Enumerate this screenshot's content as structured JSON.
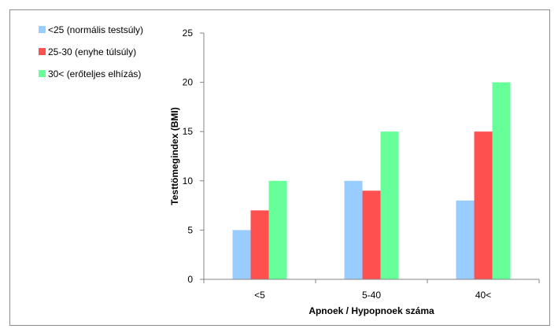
{
  "chart_data": {
    "type": "bar",
    "categories": [
      "<5",
      "5-40",
      "40<"
    ],
    "series": [
      {
        "name": "<25 (normális testsúly)",
        "values": [
          5,
          10,
          8
        ],
        "color": "#99ccff"
      },
      {
        "name": "25-30 (enyhe túlsúly)",
        "values": [
          7,
          9,
          15
        ],
        "color": "#ff5050"
      },
      {
        "name": "30< (erőteljes elhízás)",
        "values": [
          10,
          15,
          20
        ],
        "color": "#66ff99"
      }
    ],
    "title": "",
    "xlabel": "Apnoek / Hypopnoek száma",
    "ylabel": "Testtömegindex (BMI)",
    "ylim": [
      0,
      25
    ],
    "yticks": [
      0,
      5,
      10,
      15,
      20,
      25
    ],
    "grid": false,
    "legend_position": "top-left"
  }
}
